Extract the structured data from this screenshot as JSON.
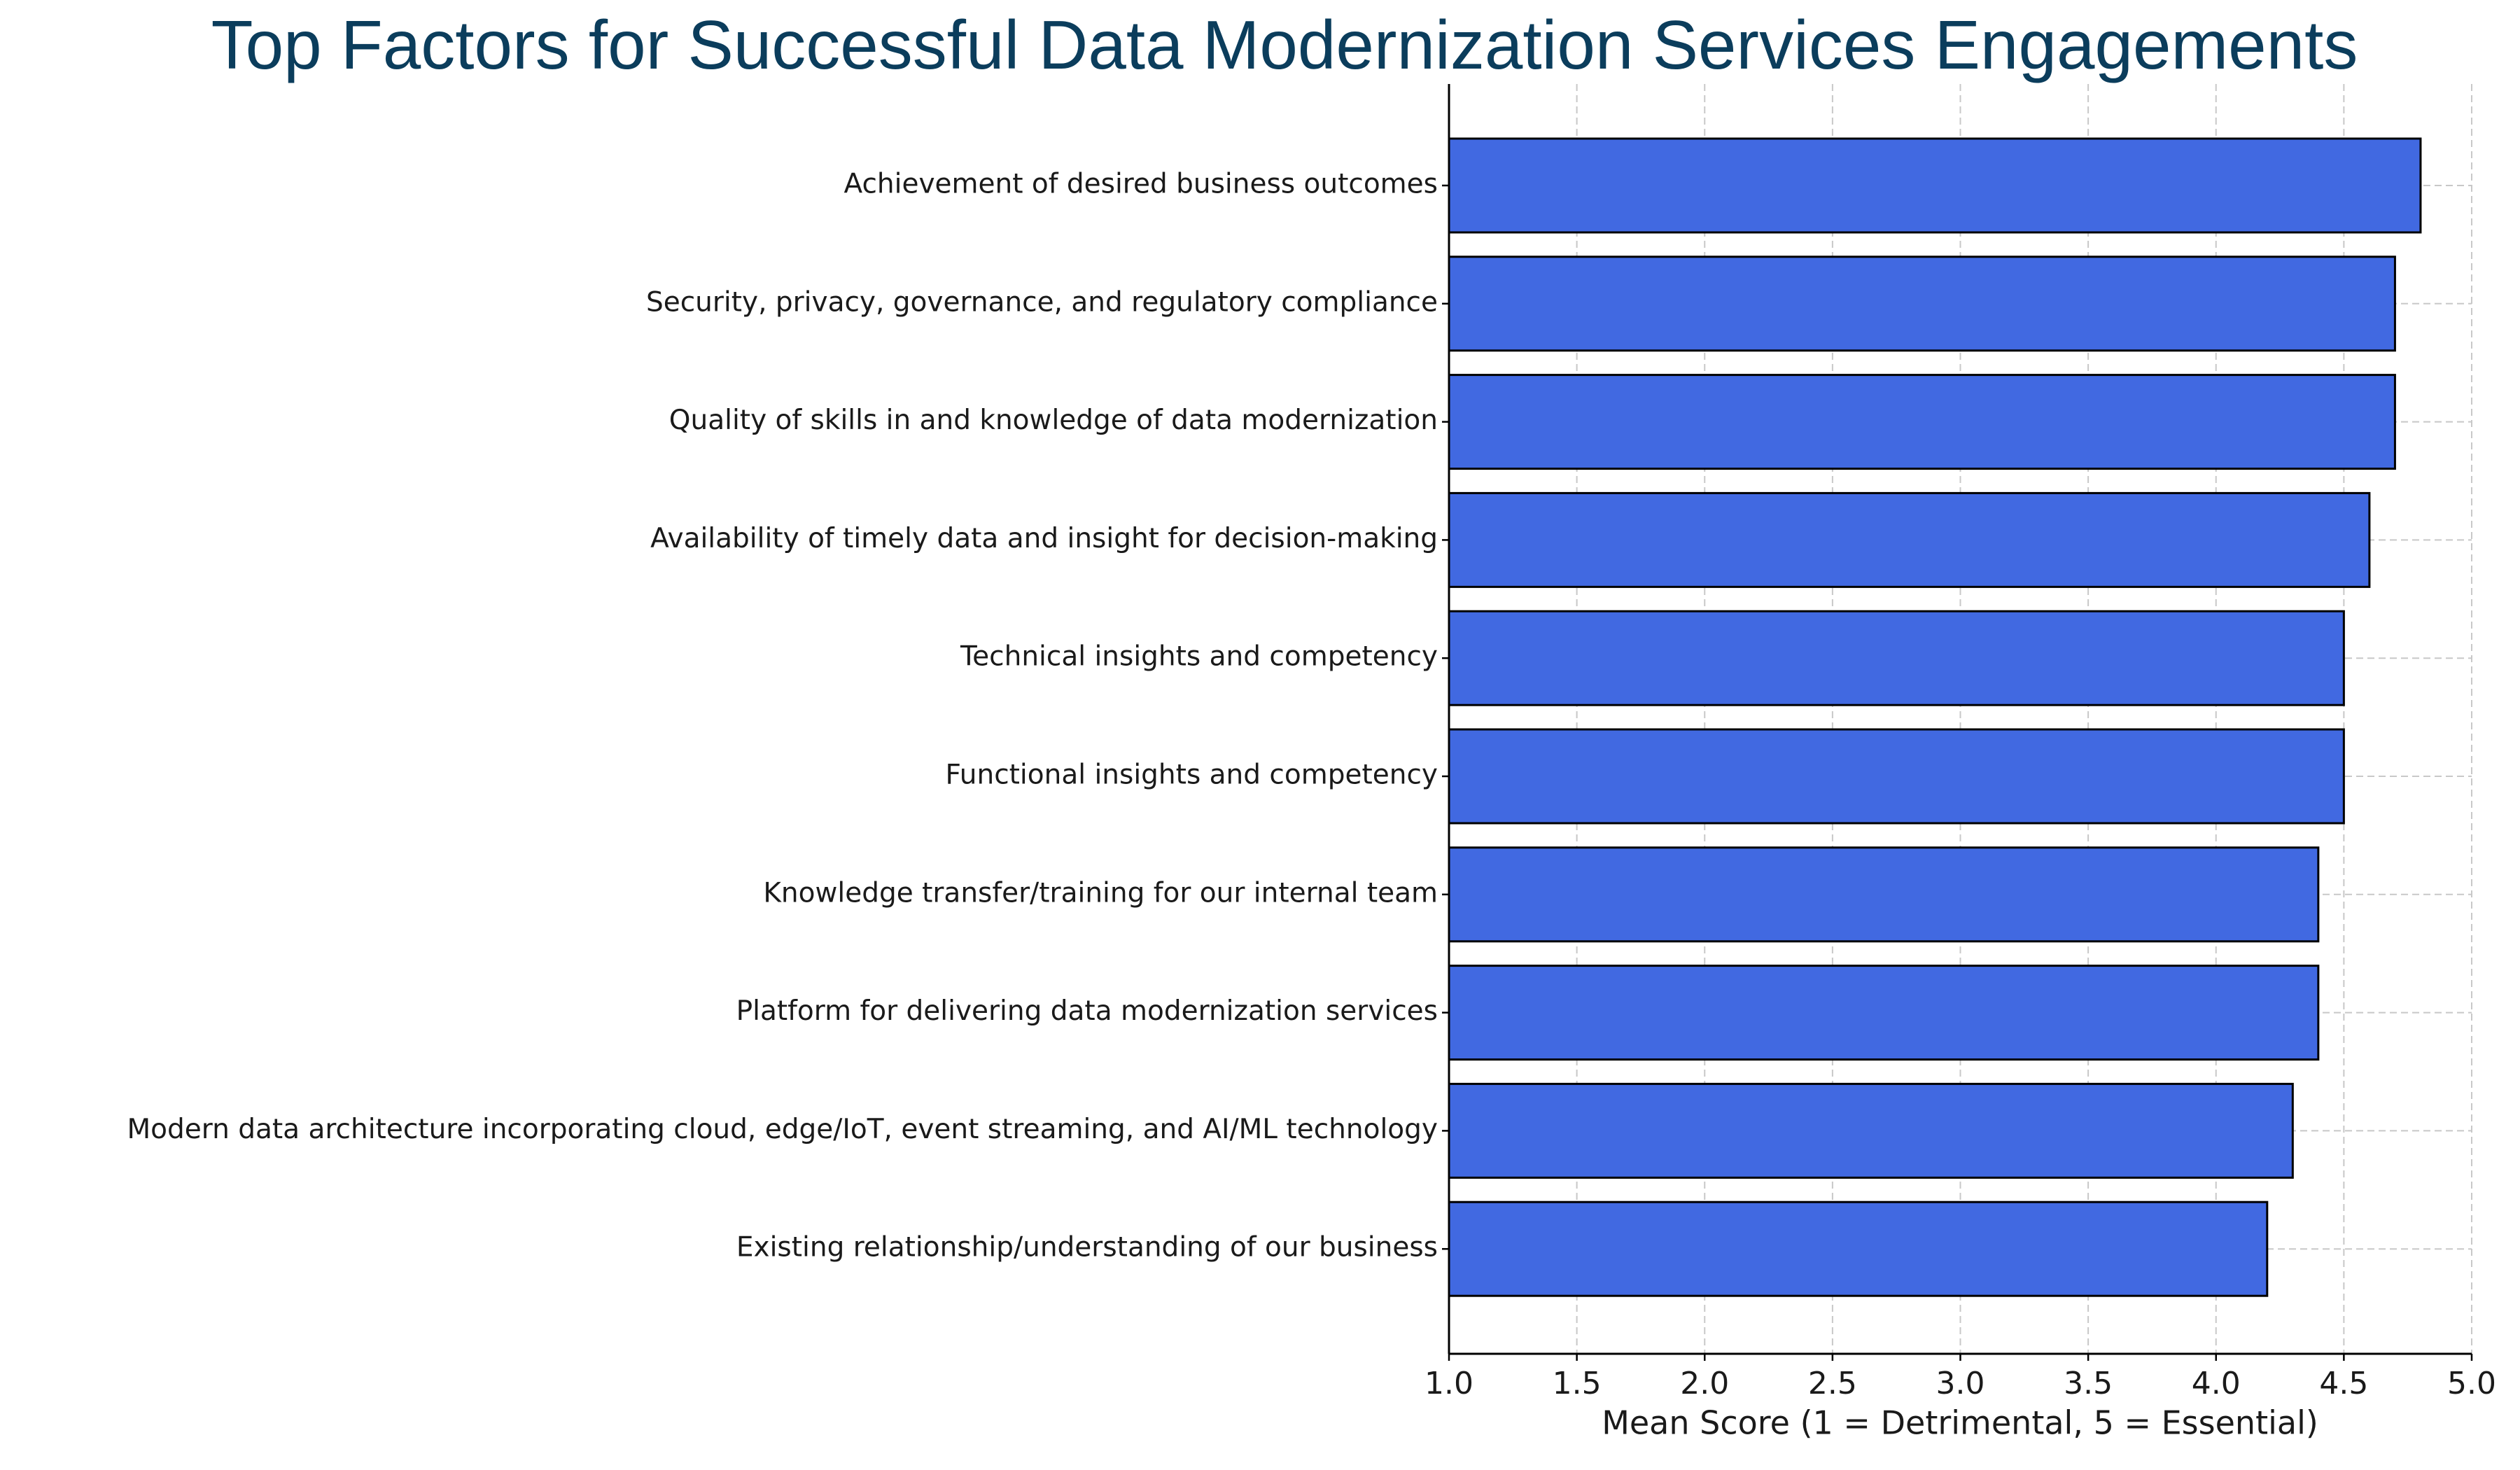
{
  "chart_data": {
    "type": "bar",
    "orientation": "horizontal",
    "title": "Top Factors for Successful Data Modernization Services Engagements",
    "x_label": "Mean Score (1 = Detrimental, 5 = Essential)",
    "categories": [
      "Achievement of desired business outcomes",
      "Security, privacy, governance, and regulatory compliance",
      "Quality of skills in and knowledge of data modernization",
      "Availability of timely data and insight for decision-making",
      "Technical insights and competency",
      "Functional insights and competency",
      "Knowledge transfer/training for our internal team",
      "Platform for delivering data modernization services",
      "Modern data architecture incorporating cloud, edge/IoT, event streaming, and AI/ML technology",
      "Existing relationship/understanding of our business"
    ],
    "values": [
      4.8,
      4.7,
      4.7,
      4.6,
      4.5,
      4.5,
      4.4,
      4.4,
      4.3,
      4.2
    ],
    "color": "#4169e1",
    "edge_color": "#000000",
    "title_color": "#0b3d5c",
    "xlim": [
      1,
      5
    ],
    "xticks": [
      {
        "value": 1,
        "label": "1.0"
      },
      {
        "value": 1.5,
        "label": "1.5"
      },
      {
        "value": 2,
        "label": "2.0"
      },
      {
        "value": 2.5,
        "label": "2.5"
      },
      {
        "value": 3,
        "label": "3.0"
      },
      {
        "value": 3.5,
        "label": "3.5"
      },
      {
        "value": 4,
        "label": "4.0"
      },
      {
        "value": 4.5,
        "label": "4.5"
      },
      {
        "value": 5,
        "label": "5.0"
      }
    ],
    "grid": true
  }
}
